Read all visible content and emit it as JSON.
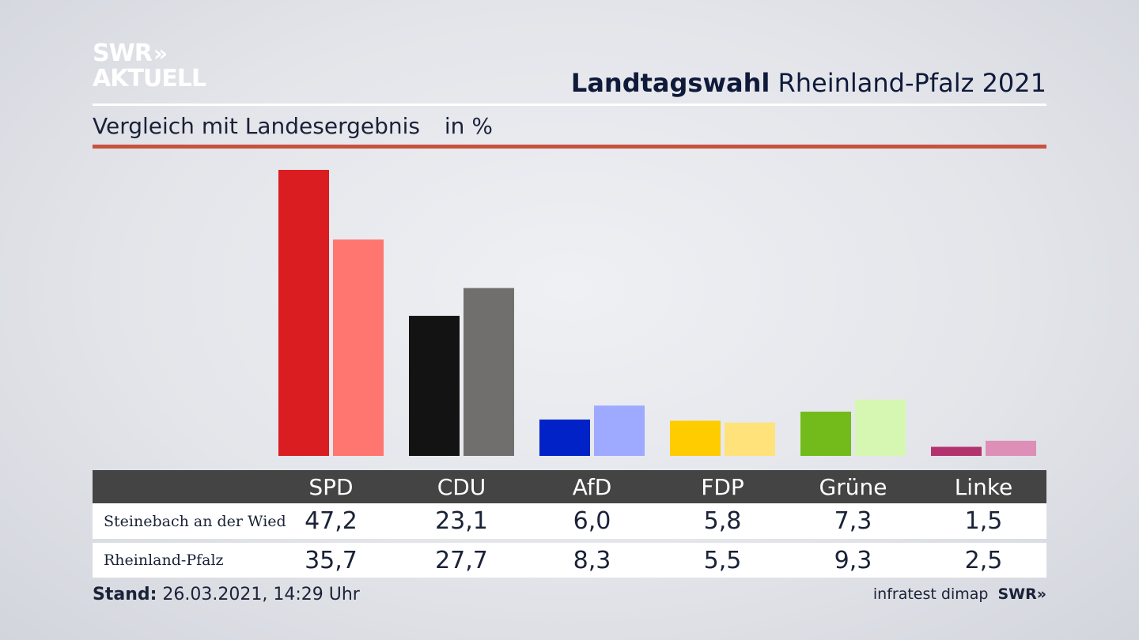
{
  "brand": {
    "line1": "SWR",
    "chevrons": "»",
    "line2": "AKTUELL"
  },
  "header": {
    "title_bold": "Landtagswahl",
    "title_rest": "Rheinland-Pfalz 2021",
    "subtitle": "Vergleich mit Landesergebnis",
    "unit": "in %"
  },
  "chart_data": {
    "type": "bar",
    "title": "Landtagswahl Rheinland-Pfalz 2021",
    "subtitle": "Vergleich mit Landesergebnis in %",
    "categories": [
      "SPD",
      "CDU",
      "AfD",
      "FDP",
      "Grüne",
      "Linke"
    ],
    "series": [
      {
        "name": "Steinebach an der Wied",
        "values": [
          47.2,
          23.1,
          6.0,
          5.8,
          7.3,
          1.5
        ],
        "labels": [
          "47,2",
          "23,1",
          "6,0",
          "5,8",
          "7,3",
          "1,5"
        ],
        "colors": [
          "#d91d20",
          "#131313",
          "#0022c6",
          "#ffcc00",
          "#72bb1b",
          "#b3336e"
        ]
      },
      {
        "name": "Rheinland-Pfalz",
        "values": [
          35.7,
          27.7,
          8.3,
          5.5,
          9.3,
          2.5
        ],
        "labels": [
          "35,7",
          "27,7",
          "8,3",
          "5,5",
          "9,3",
          "2,5"
        ],
        "colors": [
          "#ff7570",
          "#706f6d",
          "#9eaaff",
          "#ffe27a",
          "#d6f7b1",
          "#de8fb7"
        ]
      }
    ],
    "ylim": [
      0,
      47.2
    ],
    "grid": false,
    "legend": "table-below"
  },
  "footer": {
    "stand_label": "Stand:",
    "stand_value": "26.03.2021, 14:29 Uhr",
    "source": "infratest dimap",
    "source_brand": "SWR",
    "source_chevrons": "»"
  }
}
